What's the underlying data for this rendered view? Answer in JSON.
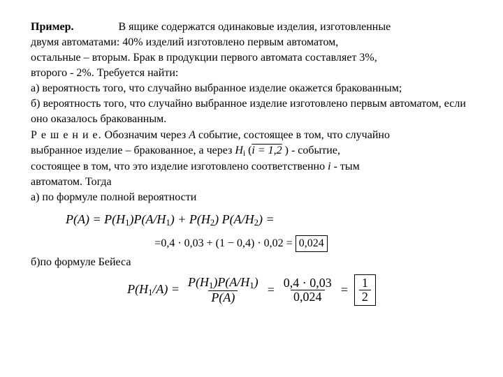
{
  "heading": "Пример.",
  "problem": {
    "line1": "В ящике содержатся одинаковые изделия, изготовленные",
    "line2": "двумя автоматами:  40% изделий изготовлено первым автоматом,",
    "line3": "остальные – вторым. Брак в продукции первого автомата составляет 3%,",
    "line4": "второго - 2%.    Требуется найти:",
    "a": "а)  вероятность того, что случайно выбранное изделие окажется бракованным;",
    "b": "б)  вероятность того, что случайно выбранное изделие изготовлено первым автоматом, если оно оказалось бракованным."
  },
  "solution": {
    "label": "Р е ш е н и е.",
    "s1a": "  Обозначим через  ",
    "eventA": "A",
    "s1b": "  событие, состоящее в том, что  случайно",
    "s2a": "выбранное изделие – бракованное, а через   ",
    "hvar": "H",
    "hsub": "i",
    "range": "i = 1,2",
    "s2b": " ) - событие,",
    "s3a": "состоящее в том, что  это изделие изготовлено соответственно  ",
    "ivar": "i",
    "s3b": " - тым",
    "s4": "автоматом. Тогда",
    "partA": "а) по формуле полной вероятности",
    "partB": "б)по формуле Бейеса"
  },
  "formulaA": {
    "lhs_P": "P",
    "lhs_A": "A",
    "terms": {
      "P": "P",
      "H1": "H",
      "H1sub": "1",
      "AH1": "A/H",
      "AH1sub": "1",
      "H2": "H",
      "H2sub": "2",
      "AH2": "A/H",
      "AH2sub": "2"
    },
    "result_text": "=0,4 · 0,03 + (1 − 0,4) · 0,02 = ",
    "boxed": "0,024"
  },
  "formulaB": {
    "P": "P",
    "H1A": "H",
    "H1sub": "1",
    "slashA": "/A",
    "num1_a": "P",
    "num1_b": "H",
    "num1_bsub": "1",
    "num1_c": "P",
    "num1_d": "A/H",
    "num1_dsub": "1",
    "den1": "P",
    "den1_arg": "A",
    "num2": "0,4 · 0,03",
    "den2": "0,024",
    "num3": "1",
    "den3": "2"
  },
  "colors": {
    "text": "#000000",
    "background": "#ffffff"
  },
  "typography": {
    "body_font": "Times New Roman",
    "body_size_pt": 12,
    "formula_size_pt": 13
  }
}
